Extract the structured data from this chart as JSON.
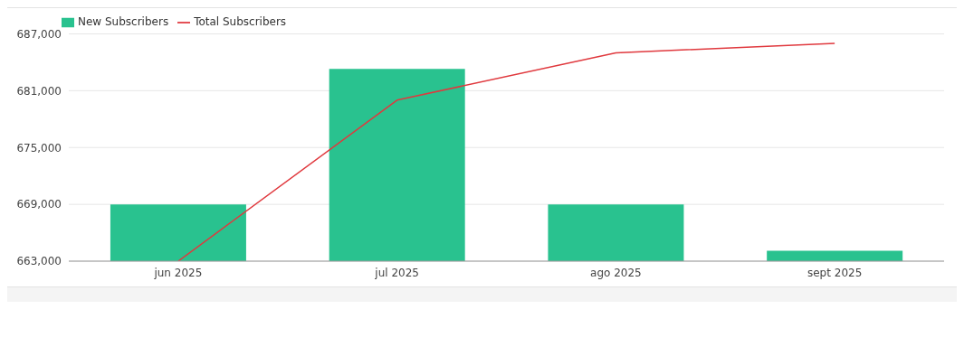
{
  "chart_data": {
    "type": "bar",
    "categories": [
      "jun 2025",
      "jul 2025",
      "ago 2025",
      "sept 2025"
    ],
    "series": [
      {
        "name": "New Subscribers",
        "color": "#29c28f",
        "values": [
          669000,
          683300,
          669000,
          664100
        ]
      },
      {
        "name": "Total Subscribers",
        "type": "line",
        "color": "#e0393e",
        "values": [
          663000,
          680000,
          685000,
          686000
        ]
      }
    ],
    "ylim": [
      663000,
      687000
    ],
    "yticks": [
      {
        "value": 663000,
        "label": "663,000"
      },
      {
        "value": 669000,
        "label": "669,000"
      },
      {
        "value": 675000,
        "label": "675,000"
      },
      {
        "value": 681000,
        "label": "681,000"
      },
      {
        "value": 687000,
        "label": "687,000"
      }
    ],
    "grid": "y",
    "legend": "top left",
    "marker": "none",
    "line_style": "solid"
  }
}
